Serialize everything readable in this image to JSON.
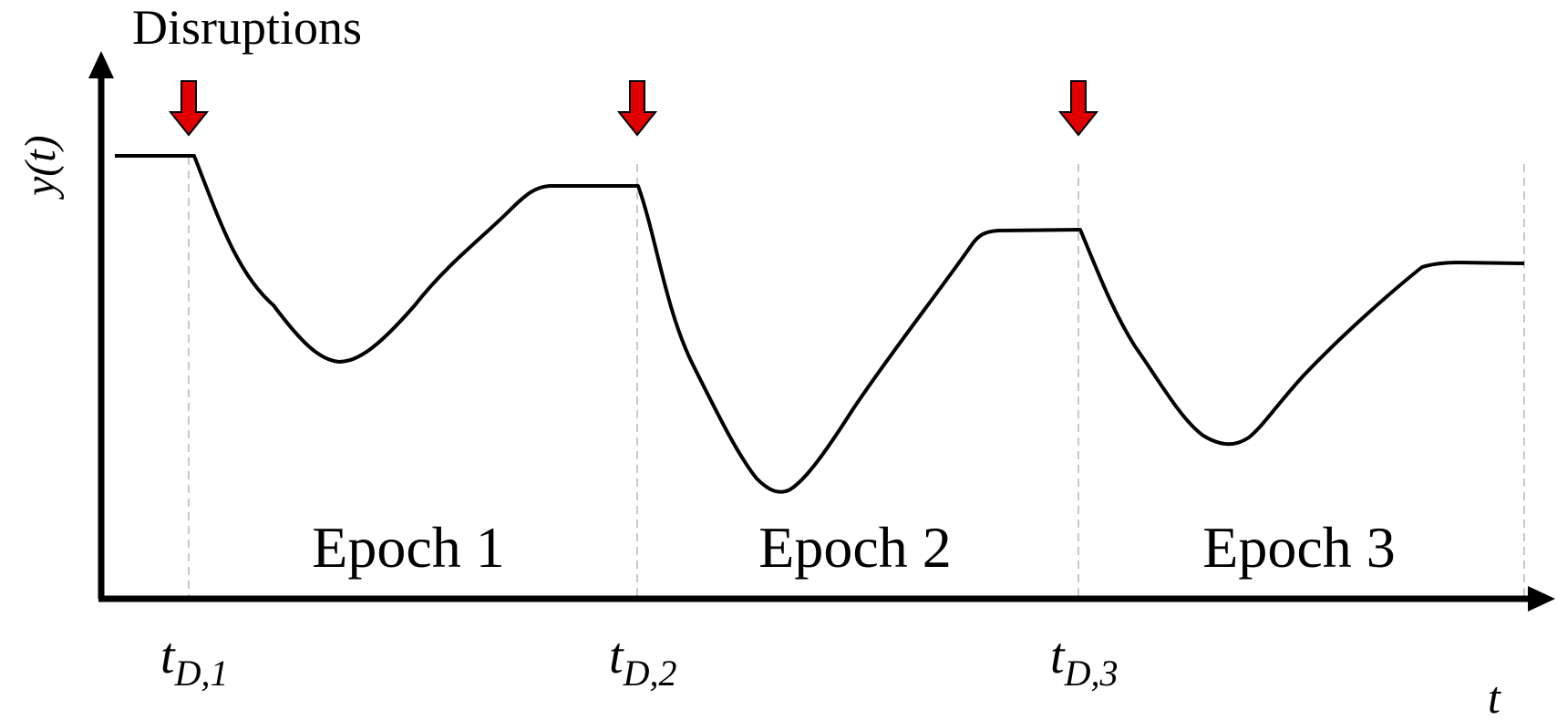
{
  "annotation": {
    "label": "Disruptions",
    "arrow_color": "#e00000"
  },
  "axes": {
    "y_label": "y(t)",
    "x_label": "t"
  },
  "disruptions": [
    {
      "base": "t",
      "sub": "D,1"
    },
    {
      "base": "t",
      "sub": "D,2"
    },
    {
      "base": "t",
      "sub": "D,3"
    }
  ],
  "epochs": [
    {
      "label": "Epoch 1"
    },
    {
      "label": "Epoch 2"
    },
    {
      "label": "Epoch 3"
    }
  ],
  "colors": {
    "axis": "#000000",
    "curve": "#000000",
    "divider": "#c8c8c8",
    "arrow": "#e00000"
  }
}
